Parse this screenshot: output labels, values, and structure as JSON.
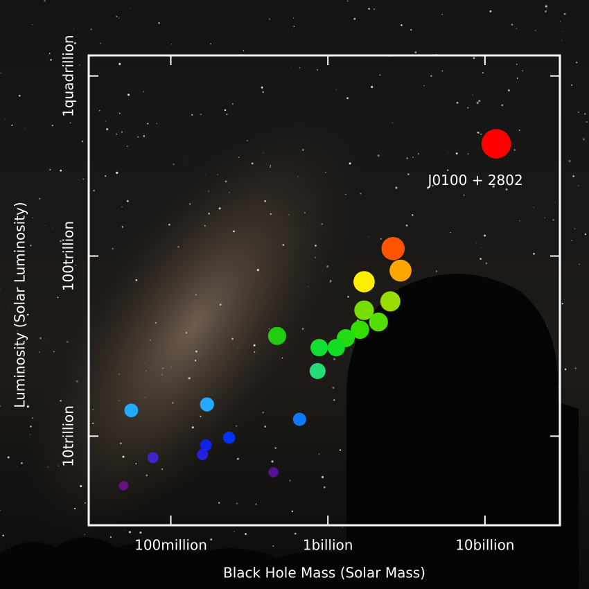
{
  "chart_data": {
    "type": "scatter",
    "x_label": "Black Hole Mass (Solar Mass)",
    "y_label": "Luminosity (Solar Luminosity)",
    "annotation": "J0100 + 2802",
    "x_log": true,
    "y_log": true,
    "xlim": [
      30000000.0,
      30000000000.0
    ],
    "ylim": [
      3200000000000.0,
      1300000000000000.0
    ],
    "xticks": [
      {
        "value": 100000000.0,
        "label": "100million"
      },
      {
        "value": 1000000000.0,
        "label": "1billion"
      },
      {
        "value": 10000000000.0,
        "label": "10billion"
      }
    ],
    "yticks": [
      {
        "value": 10000000000000.0,
        "label": "10trillion"
      },
      {
        "value": 100000000000000.0,
        "label": "100trillion"
      },
      {
        "value": 1000000000000000.0,
        "label": "1quadrillion"
      }
    ],
    "x": [
      11800000000.0,
      2600000000.0,
      2900000000.0,
      1700000000.0,
      2500000000.0,
      1700000000.0,
      2100000000.0,
      1600000000.0,
      1300000000.0,
      1130000000.0,
      880000000.0,
      475000000.0,
      860000000.0,
      660000000.0,
      170000000.0,
      56000000.0,
      235000000.0,
      167000000.0,
      159000000.0,
      77000000.0,
      450000000.0,
      50000000.0
    ],
    "values": [
      420000000000000.0,
      110000000000000.0,
      83000000000000.0,
      72000000000000.0,
      56000000000000.0,
      50000000000000.0,
      43000000000000.0,
      39000000000000.0,
      35000000000000.0,
      31000000000000.0,
      31000000000000.0,
      36000000000000.0,
      23000000000000.0,
      12400000000000.0,
      15000000000000.0,
      13900000000000.0,
      9800000000000.0,
      8900000000000.0,
      7900000000000.0,
      7600000000000.0,
      6300000000000.0,
      5300000000000.0
    ],
    "colors": [
      "#ff0000",
      "#ff5500",
      "#ffa500",
      "#ffee00",
      "#99dd00",
      "#77dd00",
      "#55dd00",
      "#33dd00",
      "#22dd11",
      "#11dd22",
      "#11dd33",
      "#22cc11",
      "#22dd77",
      "#1177ff",
      "#22aaff",
      "#22aaff",
      "#0033ff",
      "#1122ee",
      "#2222dd",
      "#4422cc",
      "#551199",
      "#661188"
    ]
  }
}
